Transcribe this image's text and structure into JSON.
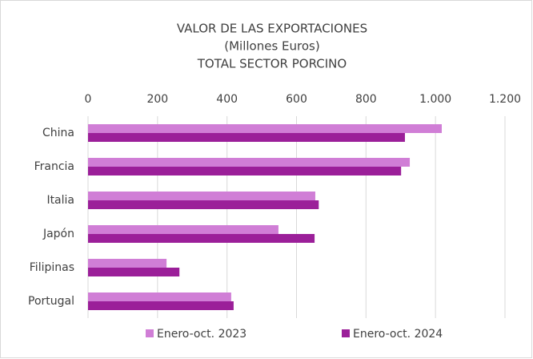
{
  "chart_data": {
    "type": "bar",
    "orientation": "horizontal",
    "title": [
      "VALOR DE LAS EXPORTACIONES",
      "(Millones Euros)",
      "TOTAL SECTOR PORCINO"
    ],
    "categories": [
      "China",
      "Francia",
      "Italia",
      "Japón",
      "Filipinas",
      "Portugal"
    ],
    "series": [
      {
        "name": "Enero-oct. 2023",
        "color": "#d07ed6",
        "values": [
          1018,
          926,
          654,
          548,
          226,
          412
        ]
      },
      {
        "name": "Enero-oct. 2024",
        "color": "#9b1f99",
        "values": [
          912,
          901,
          664,
          652,
          263,
          419
        ]
      }
    ],
    "xlim": [
      0,
      1200
    ],
    "xticks": [
      0,
      200,
      400,
      600,
      800,
      {
        "value": 1000,
        "label": "1.000"
      },
      {
        "value": 1200,
        "label": "1.200"
      }
    ],
    "grid": true,
    "legend": "bottom"
  }
}
